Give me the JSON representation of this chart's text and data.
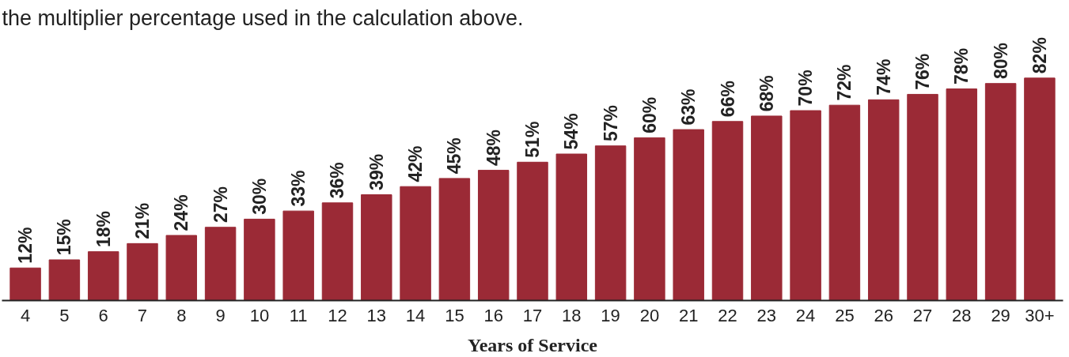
{
  "chart_data": {
    "type": "bar",
    "xlabel": "Years of Service",
    "annotations": [
      "the multiplier percentage used in the calculation above."
    ],
    "categories": [
      "4",
      "5",
      "6",
      "7",
      "8",
      "9",
      "10",
      "11",
      "12",
      "13",
      "14",
      "15",
      "16",
      "17",
      "18",
      "19",
      "20",
      "21",
      "22",
      "23",
      "24",
      "25",
      "26",
      "27",
      "28",
      "29",
      "30+"
    ],
    "values": [
      12,
      15,
      18,
      21,
      24,
      27,
      30,
      33,
      36,
      39,
      42,
      45,
      48,
      51,
      54,
      57,
      60,
      63,
      66,
      68,
      70,
      72,
      74,
      76,
      78,
      80,
      82
    ],
    "value_labels": [
      "12%",
      "15%",
      "18%",
      "21%",
      "24%",
      "27%",
      "30%",
      "33%",
      "36%",
      "39%",
      "42%",
      "45%",
      "48%",
      "51%",
      "54%",
      "57%",
      "60%",
      "63%",
      "66%",
      "68%",
      "70%",
      "72%",
      "74%",
      "76%",
      "78%",
      "80%",
      "82%"
    ],
    "color": "#9b2a36",
    "grid": false
  }
}
